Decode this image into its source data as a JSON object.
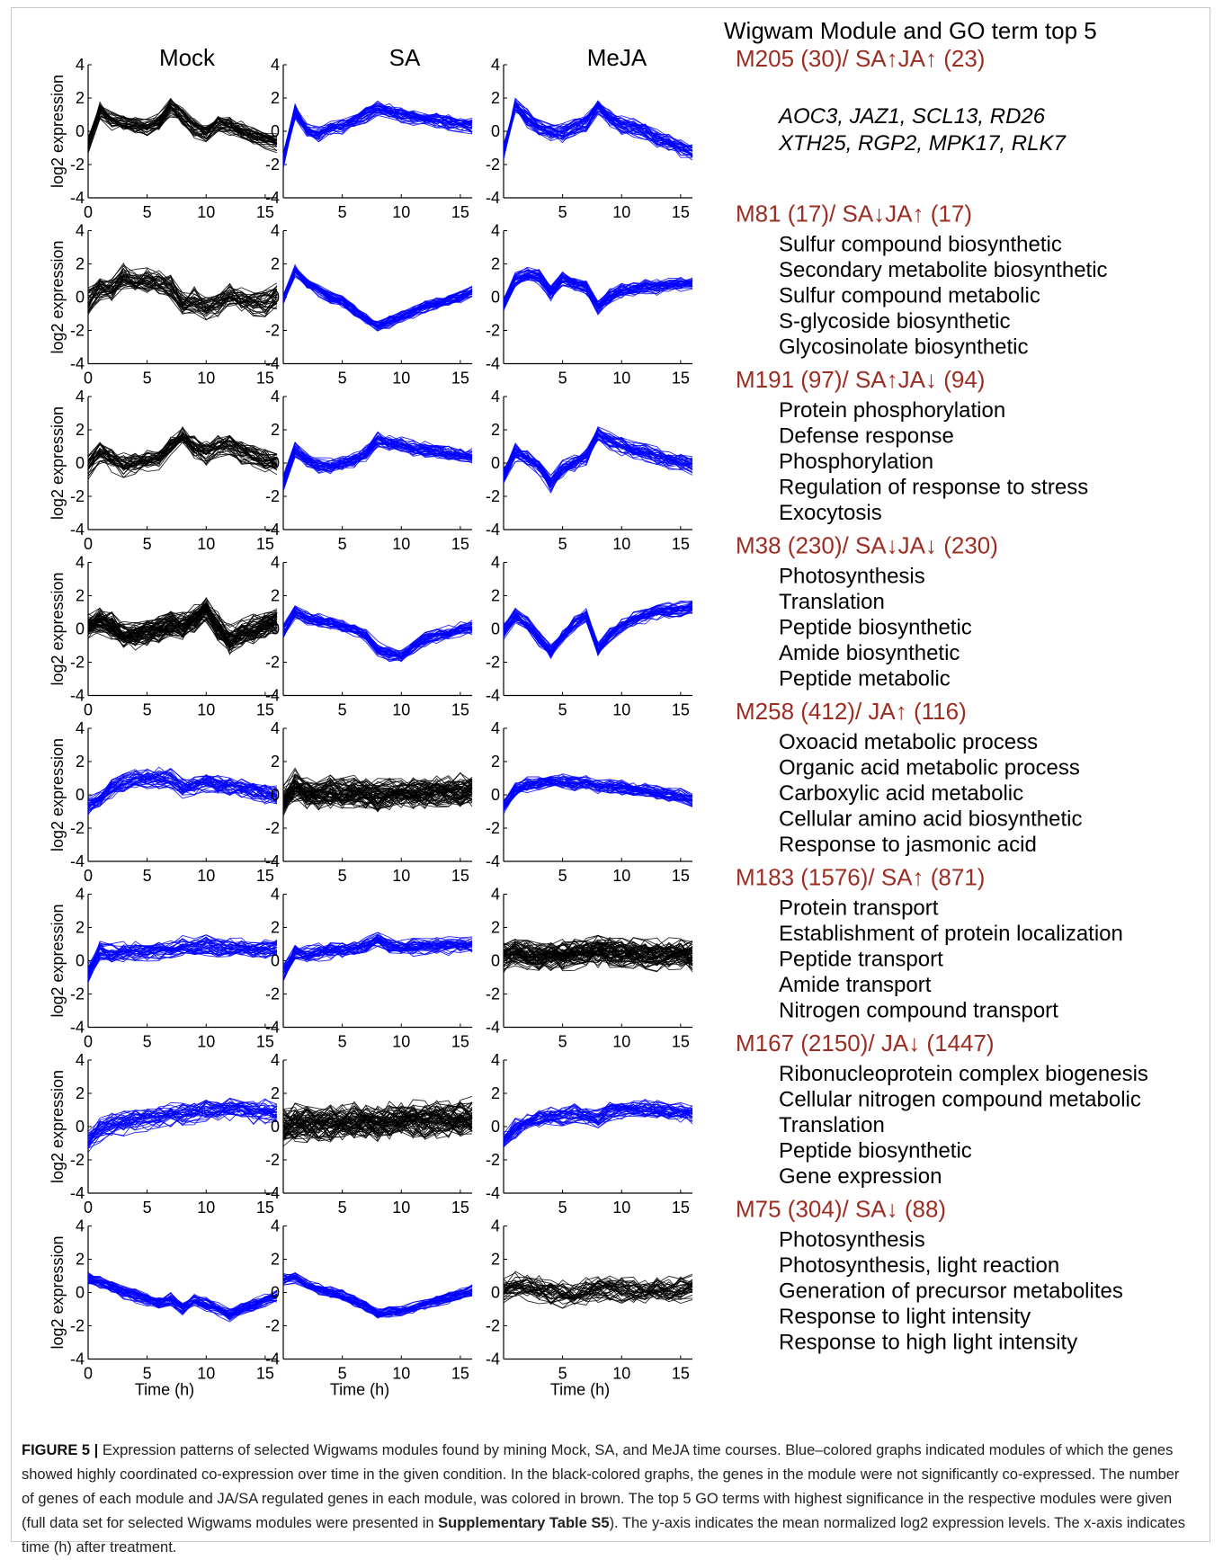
{
  "figure": {
    "column_titles": [
      "Mock",
      "SA",
      "MeJA"
    ],
    "right_title": "Wigwam Module and GO term top 5",
    "y_axis_label": "log2 expression",
    "x_axis_label": "Time (h)",
    "y_ticks": [
      "4",
      "2",
      "0",
      "-2",
      "-4"
    ],
    "x_ticks_first": [
      "0",
      "5",
      "10",
      "15"
    ],
    "x_ticks_other": [
      "5",
      "10",
      "15"
    ],
    "colors": {
      "coexpressed": "#0000ff",
      "not_coexpressed": "#000000",
      "module_header": "#9b2d22"
    },
    "modules": [
      {
        "id": "M205",
        "header": "M205 (30)/ SA↑JA↑ (23)",
        "genes": [
          "AOC3, JAZ1, SCL13, RD26",
          "XTH25, RGP2, MPK17, RLK7"
        ],
        "go_terms": []
      },
      {
        "id": "M81",
        "header": "M81 (17)/ SA↓JA↑ (17)",
        "genes": [],
        "go_terms": [
          "Sulfur compound biosynthetic",
          "Secondary metabolite biosynthetic",
          "Sulfur compound metabolic",
          "S-glycoside biosynthetic",
          "Glycosinolate biosynthetic"
        ]
      },
      {
        "id": "M191",
        "header": "M191 (97)/ SA↑JA↓ (94)",
        "genes": [],
        "go_terms": [
          "Protein phosphorylation",
          "Defense response",
          "Phosphorylation",
          "Regulation of response to stress",
          "Exocytosis"
        ]
      },
      {
        "id": "M38",
        "header": "M38 (230)/ SA↓JA↓ (230)",
        "genes": [],
        "go_terms": [
          "Photosynthesis",
          "Translation",
          "Peptide biosynthetic",
          "Amide biosynthetic",
          "Peptide metabolic"
        ]
      },
      {
        "id": "M258",
        "header": "M258 (412)/ JA↑ (116)",
        "genes": [],
        "go_terms": [
          "Oxoacid metabolic process",
          "Organic acid metabolic process",
          "Carboxylic acid metabolic",
          "Cellular amino acid biosynthetic",
          "Response to jasmonic acid"
        ]
      },
      {
        "id": "M183",
        "header": "M183 (1576)/ SA↑ (871)",
        "genes": [],
        "go_terms": [
          "Protein transport",
          "Establishment of protein localization",
          "Peptide transport",
          "Amide transport",
          "Nitrogen compound transport"
        ]
      },
      {
        "id": "M167",
        "header": "M167 (2150)/ JA↓ (1447)",
        "genes": [],
        "go_terms": [
          "Ribonucleoprotein complex biogenesis",
          "Cellular nitrogen compound metabolic",
          "Translation",
          "Peptide biosynthetic",
          "Gene expression"
        ]
      },
      {
        "id": "M75",
        "header": "M75 (304)/ SA↓ (88)",
        "genes": [],
        "go_terms": [
          "Photosynthesis",
          "Photosynthesis, light reaction",
          "Generation of precursor metabolites",
          "Response to light intensity",
          "Response to high light intensity"
        ]
      }
    ]
  },
  "caption": {
    "label": "FIGURE 5 |",
    "text_before_bold": " Expression patterns of selected Wigwams modules found by mining Mock, SA, and MeJA time courses. Blue–colored graphs indicated modules of which the genes showed highly coordinated co-expression over time in the given condition. In the black-colored graphs, the genes in the module were not significantly co-expressed. The number of genes of each module and JA/SA regulated genes in each module, was colored in brown. The top 5 GO terms with highest significance in the respective modules were given (full data set for selected Wigwams modules were presented in ",
    "bold_ref": "Supplementary Table S5",
    "text_after_bold": "). The y-axis indicates the mean normalized log2 expression levels. The x-axis indicates time (h) after treatment."
  },
  "chart_data": {
    "type": "line",
    "description_units": "x = time (h), y = log2 expression; each panel shows many gene profiles represented here by mean profile and spread",
    "xlim": [
      0,
      16
    ],
    "ylim": [
      -4,
      4
    ],
    "time_points": [
      0,
      1,
      2,
      3,
      4,
      5,
      6,
      7,
      8,
      9,
      10,
      11,
      12,
      13,
      14,
      15,
      16
    ],
    "xlabel": "Time (h)",
    "ylabel": "log2 expression",
    "panels": [
      {
        "module": "M205",
        "condition": "Mock",
        "color": "black",
        "mean": [
          -0.8,
          1.2,
          0.6,
          0.4,
          0.3,
          0.2,
          0.5,
          1.4,
          0.8,
          0.2,
          -0.2,
          0.4,
          0.3,
          0.0,
          -0.3,
          -0.5,
          -0.7
        ],
        "spread": 0.7
      },
      {
        "module": "M205",
        "condition": "SA",
        "color": "blue",
        "mean": [
          -1.8,
          1.2,
          0.0,
          -0.2,
          0.2,
          0.3,
          0.6,
          1.0,
          1.4,
          1.2,
          1.0,
          0.8,
          0.7,
          0.6,
          0.5,
          0.4,
          0.3
        ],
        "spread": 0.6
      },
      {
        "module": "M205",
        "condition": "MeJA",
        "color": "blue",
        "mean": [
          -1.2,
          1.6,
          0.8,
          0.2,
          0.0,
          -0.1,
          0.2,
          0.5,
          1.6,
          0.8,
          0.4,
          0.2,
          0.0,
          -0.4,
          -0.7,
          -1.0,
          -1.3
        ],
        "spread": 0.7
      },
      {
        "module": "M81",
        "condition": "Mock",
        "color": "black",
        "mean": [
          -0.2,
          0.6,
          0.4,
          1.2,
          0.8,
          1.0,
          0.9,
          0.6,
          -0.4,
          -0.2,
          -0.6,
          -0.4,
          0.0,
          -0.2,
          -0.3,
          -0.4,
          0.0
        ],
        "spread": 1.0
      },
      {
        "module": "M81",
        "condition": "SA",
        "color": "blue",
        "mean": [
          -0.2,
          1.6,
          0.8,
          0.4,
          0.0,
          -0.3,
          -0.8,
          -1.3,
          -1.8,
          -1.5,
          -1.2,
          -0.9,
          -0.6,
          -0.4,
          -0.2,
          0.0,
          0.3
        ],
        "spread": 0.45
      },
      {
        "module": "M81",
        "condition": "MeJA",
        "color": "blue",
        "mean": [
          -0.4,
          1.0,
          1.3,
          1.2,
          0.2,
          1.1,
          0.8,
          0.6,
          -0.6,
          0.0,
          0.4,
          0.5,
          0.6,
          0.6,
          0.7,
          0.8,
          0.8
        ],
        "spread": 0.6
      },
      {
        "module": "M191",
        "condition": "Mock",
        "color": "black",
        "mean": [
          -0.3,
          0.6,
          0.2,
          -0.1,
          0.0,
          0.1,
          0.3,
          0.9,
          1.6,
          0.9,
          0.6,
          1.0,
          1.1,
          0.6,
          0.3,
          0.1,
          -0.1
        ],
        "spread": 0.9
      },
      {
        "module": "M191",
        "condition": "SA",
        "color": "blue",
        "mean": [
          -1.2,
          0.8,
          0.2,
          -0.1,
          -0.2,
          0.0,
          0.2,
          0.6,
          1.4,
          1.2,
          1.1,
          0.9,
          0.8,
          0.7,
          0.6,
          0.5,
          0.4
        ],
        "spread": 0.6
      },
      {
        "module": "M191",
        "condition": "MeJA",
        "color": "blue",
        "mean": [
          -0.8,
          0.6,
          0.3,
          -0.3,
          -1.3,
          -0.4,
          0.0,
          0.4,
          1.7,
          1.3,
          1.0,
          0.8,
          0.6,
          0.4,
          0.2,
          0.0,
          -0.2
        ],
        "spread": 0.7
      },
      {
        "module": "M38",
        "condition": "Mock",
        "color": "black",
        "mean": [
          0.2,
          0.6,
          0.2,
          -0.3,
          -0.4,
          -0.2,
          0.0,
          0.3,
          0.2,
          0.6,
          1.2,
          0.2,
          -0.6,
          -0.2,
          0.0,
          0.3,
          0.6
        ],
        "spread": 1.1
      },
      {
        "module": "M38",
        "condition": "SA",
        "color": "blue",
        "mean": [
          -0.2,
          1.0,
          0.7,
          0.5,
          0.4,
          0.2,
          0.0,
          -0.4,
          -1.2,
          -1.5,
          -1.6,
          -1.1,
          -0.6,
          -0.4,
          -0.2,
          0.0,
          0.1
        ],
        "spread": 0.55
      },
      {
        "module": "M38",
        "condition": "MeJA",
        "color": "blue",
        "mean": [
          -0.2,
          0.8,
          0.3,
          -0.6,
          -1.4,
          -0.4,
          0.3,
          0.8,
          -1.2,
          -0.4,
          0.2,
          0.6,
          0.8,
          1.0,
          1.1,
          1.2,
          1.3
        ],
        "spread": 0.6
      },
      {
        "module": "M258",
        "condition": "Mock",
        "color": "blue",
        "mean": [
          -0.6,
          -0.2,
          0.4,
          0.7,
          0.9,
          1.0,
          1.0,
          1.0,
          0.4,
          0.6,
          0.8,
          0.6,
          0.5,
          0.4,
          0.3,
          0.1,
          0.0
        ],
        "spread": 0.8
      },
      {
        "module": "M258",
        "condition": "SA",
        "color": "black",
        "mean": [
          -0.3,
          0.6,
          0.2,
          0.1,
          0.2,
          0.1,
          0.2,
          0.2,
          0.0,
          0.1,
          0.2,
          0.2,
          0.2,
          0.3,
          0.3,
          0.3,
          0.3
        ],
        "spread": 1.2
      },
      {
        "module": "M258",
        "condition": "MeJA",
        "color": "blue",
        "mean": [
          -0.7,
          0.3,
          0.6,
          0.7,
          0.8,
          0.8,
          0.7,
          0.7,
          0.5,
          0.5,
          0.4,
          0.3,
          0.2,
          0.1,
          0.0,
          -0.1,
          -0.3
        ],
        "spread": 0.6
      },
      {
        "module": "M183",
        "condition": "Mock",
        "color": "blue",
        "mean": [
          -0.8,
          0.6,
          0.4,
          0.5,
          0.5,
          0.6,
          0.6,
          0.7,
          0.9,
          0.8,
          0.9,
          0.8,
          0.8,
          0.8,
          0.7,
          0.7,
          0.7
        ],
        "spread": 0.8
      },
      {
        "module": "M183",
        "condition": "SA",
        "color": "blue",
        "mean": [
          -0.8,
          0.5,
          0.4,
          0.5,
          0.6,
          0.6,
          0.7,
          0.9,
          1.2,
          0.9,
          0.8,
          0.8,
          0.8,
          0.9,
          0.9,
          0.9,
          0.9
        ],
        "spread": 0.7
      },
      {
        "module": "M183",
        "condition": "MeJA",
        "color": "black",
        "mean": [
          0.2,
          0.5,
          0.4,
          0.3,
          0.4,
          0.3,
          0.4,
          0.5,
          0.6,
          0.5,
          0.5,
          0.4,
          0.4,
          0.4,
          0.4,
          0.4,
          0.3
        ],
        "spread": 1.2
      },
      {
        "module": "M167",
        "condition": "Mock",
        "color": "blue",
        "mean": [
          -0.9,
          -0.2,
          0.1,
          0.2,
          0.4,
          0.5,
          0.6,
          0.7,
          0.7,
          0.8,
          0.9,
          0.9,
          1.0,
          1.0,
          0.9,
          0.9,
          0.8
        ],
        "spread": 0.9
      },
      {
        "module": "M167",
        "condition": "SA",
        "color": "black",
        "mean": [
          0.0,
          0.3,
          0.2,
          0.3,
          0.3,
          0.3,
          0.4,
          0.3,
          0.2,
          0.4,
          0.4,
          0.4,
          0.4,
          0.5,
          0.5,
          0.5,
          0.6
        ],
        "spread": 1.4
      },
      {
        "module": "M167",
        "condition": "MeJA",
        "color": "blue",
        "mean": [
          -0.8,
          -0.1,
          0.3,
          0.5,
          0.6,
          0.7,
          0.8,
          0.7,
          0.5,
          0.9,
          1.0,
          1.1,
          1.1,
          1.0,
          0.9,
          0.9,
          0.8
        ],
        "spread": 0.8
      },
      {
        "module": "M75",
        "condition": "Mock",
        "color": "blue",
        "mean": [
          0.8,
          0.6,
          0.3,
          0.0,
          -0.2,
          -0.4,
          -0.6,
          -0.4,
          -1.0,
          -0.5,
          -0.7,
          -1.0,
          -1.4,
          -1.0,
          -0.8,
          -0.5,
          -0.2
        ],
        "spread": 0.5
      },
      {
        "module": "M75",
        "condition": "SA",
        "color": "blue",
        "mean": [
          0.8,
          0.9,
          0.5,
          0.2,
          0.0,
          -0.2,
          -0.5,
          -0.8,
          -1.3,
          -1.2,
          -1.1,
          -0.9,
          -0.7,
          -0.5,
          -0.3,
          -0.1,
          0.1
        ],
        "spread": 0.45
      },
      {
        "module": "M75",
        "condition": "MeJA",
        "color": "black",
        "mean": [
          0.2,
          0.4,
          0.3,
          0.2,
          0.0,
          -0.1,
          -0.1,
          0.1,
          0.2,
          0.2,
          0.1,
          0.1,
          0.0,
          0.1,
          0.2,
          0.2,
          0.3
        ],
        "spread": 1.0
      }
    ]
  }
}
